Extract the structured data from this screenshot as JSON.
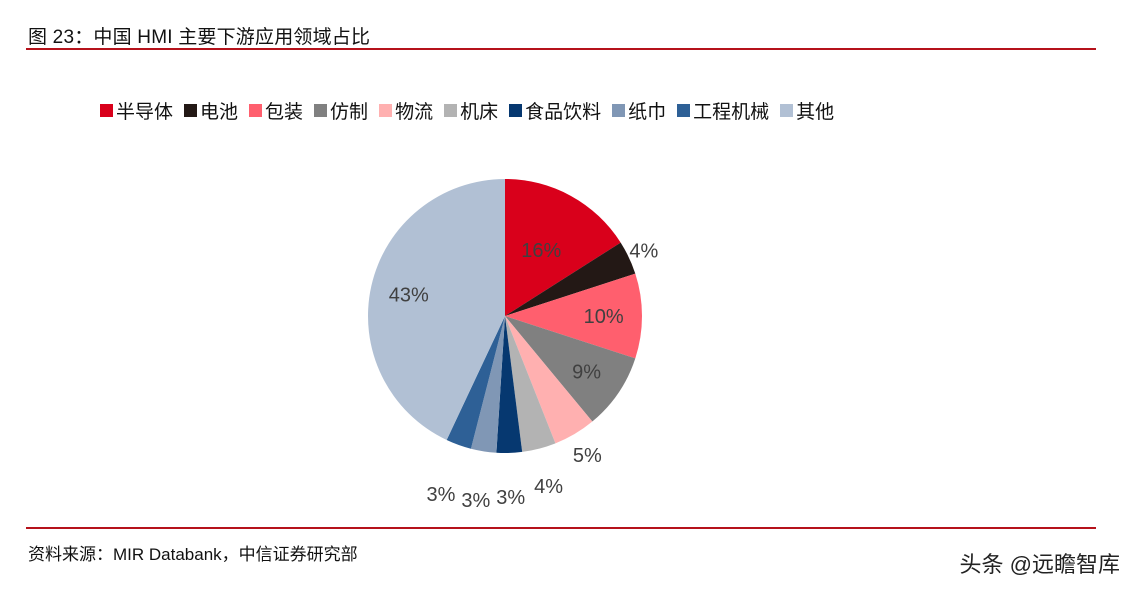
{
  "header": {
    "title": "图 23：中国 HMI 主要下游应用领域占比"
  },
  "footer": {
    "source": "资料来源：MIR Databank，中信证券研究部",
    "watermark": "头条 @远瞻智库"
  },
  "chart_data": {
    "type": "pie",
    "title": "中国 HMI 主要下游应用领域占比",
    "start_angle": "12 o'clock, clockwise",
    "legend_position": "top",
    "categories": [
      "半导体",
      "电池",
      "包装",
      "仿制",
      "物流",
      "机床",
      "食品饮料",
      "纸巾",
      "工程机械",
      "其他"
    ],
    "values": [
      16,
      4,
      10,
      9,
      5,
      4,
      3,
      3,
      3,
      43
    ],
    "labels": [
      "16%",
      "4%",
      "10%",
      "9%",
      "5%",
      "4%",
      "3%",
      "3%",
      "3%",
      "43%"
    ],
    "colors": [
      "#d9001b",
      "#231815",
      "#ff5f6e",
      "#808080",
      "#ffb0b0",
      "#b3b3b3",
      "#063870",
      "#8097b5",
      "#2e6096",
      "#b1c0d4"
    ],
    "unit": "%"
  },
  "legend": {
    "items": [
      {
        "label": "半导体",
        "color": "#d9001b"
      },
      {
        "label": "电池",
        "color": "#231815"
      },
      {
        "label": "包装",
        "color": "#ff5f6e"
      },
      {
        "label": "仿制",
        "color": "#808080"
      },
      {
        "label": "物流",
        "color": "#ffb0b0"
      },
      {
        "label": "机床",
        "color": "#b3b3b3"
      },
      {
        "label": "食品饮料",
        "color": "#063870"
      },
      {
        "label": "纸巾",
        "color": "#8097b5"
      },
      {
        "label": "工程机械",
        "color": "#2e6096"
      },
      {
        "label": "其他",
        "color": "#b1c0d4"
      }
    ]
  }
}
